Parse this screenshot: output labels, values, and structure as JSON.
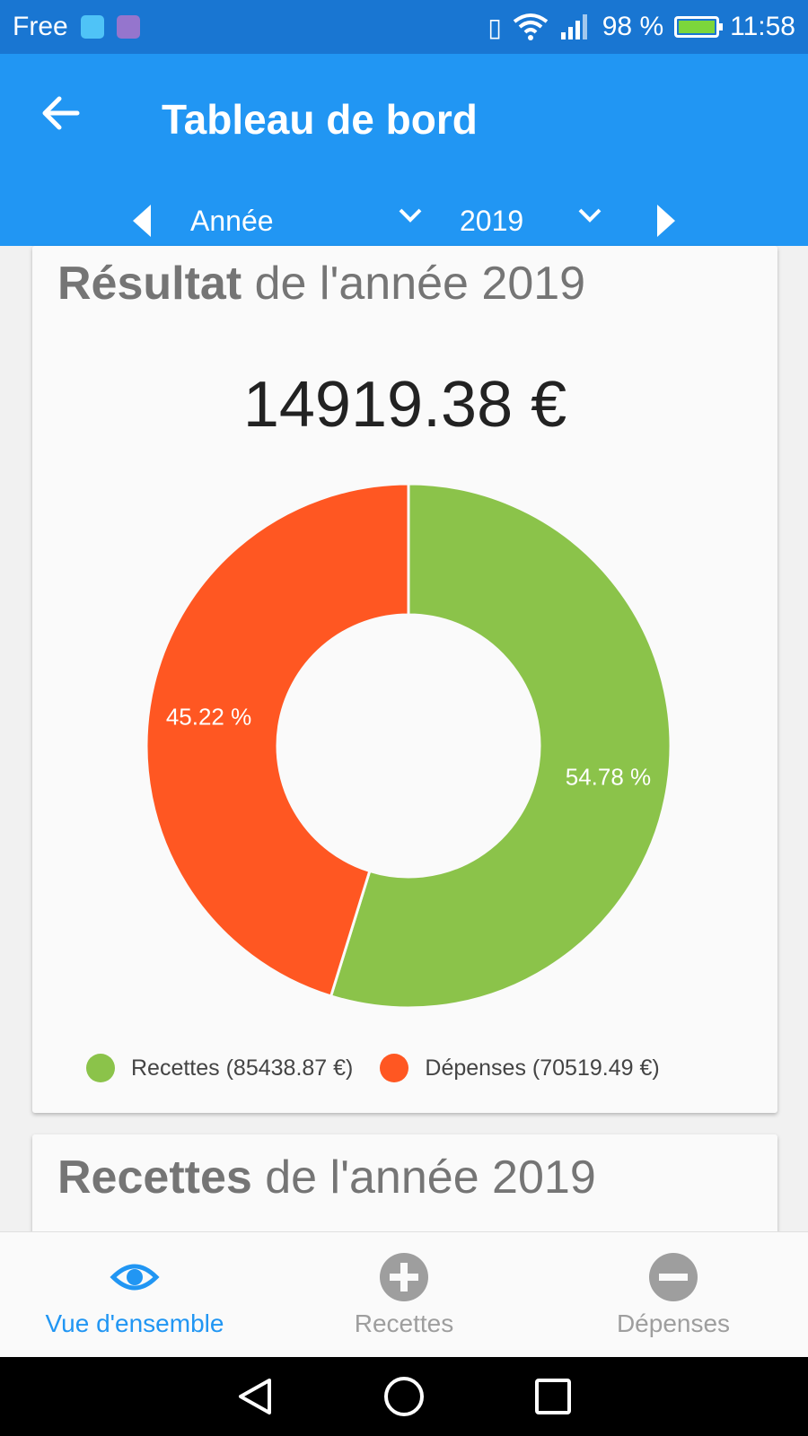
{
  "status_bar": {
    "carrier": "Free",
    "battery": "98 %",
    "time": "11:58"
  },
  "app_bar": {
    "title": "Tableau de bord",
    "period": "Année",
    "year": "2019"
  },
  "result_card": {
    "title_bold": "Résultat",
    "title_rest": " de l'année 2019",
    "amount": "14919.38 €",
    "legend": {
      "recettes": "Recettes (85438.87 €)",
      "depenses": "Dépenses (70519.49 €)"
    }
  },
  "chart_data": {
    "type": "pie",
    "slices": [
      {
        "label": "Recettes",
        "value": 54.78,
        "display": "54.78 %",
        "color": "#8bc34a"
      },
      {
        "label": "Dépenses",
        "value": 45.22,
        "display": "45.22 %",
        "color": "#ff5722"
      }
    ]
  },
  "recettes_card": {
    "title_bold": "Recettes",
    "title_rest": " de l'année 2019"
  },
  "bottom_nav": {
    "overview": "Vue d'ensemble",
    "recettes": "Recettes",
    "depenses": "Dépenses"
  },
  "colors": {
    "primary": "#2196f3",
    "primary_dark": "#1976d2",
    "income": "#8bc34a",
    "expense": "#ff5722"
  }
}
